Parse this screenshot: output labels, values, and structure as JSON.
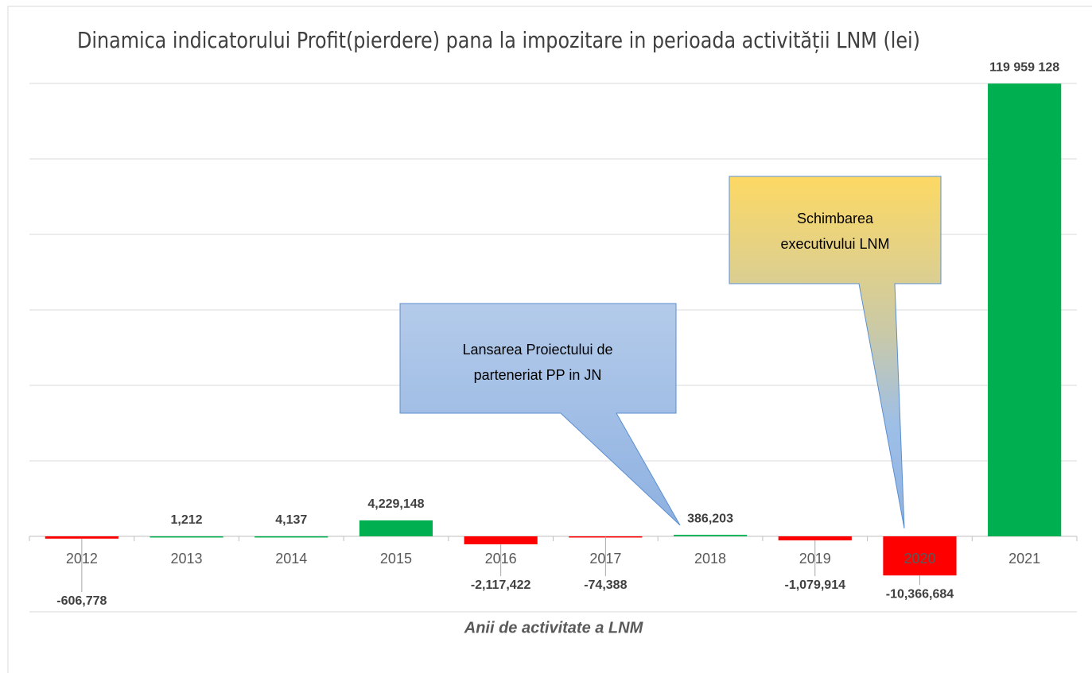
{
  "chart_data": {
    "type": "bar",
    "title": "Dinamica indicatorului Profit(pierdere) pana la impozitare in perioada activității LNM  (lei)",
    "x_label": "Anii de activitate a LNM",
    "categories": [
      "2012",
      "2013",
      "2014",
      "2015",
      "2016",
      "2017",
      "2018",
      "2019",
      "2020",
      "2021"
    ],
    "values": [
      -606778,
      1212,
      4137,
      4229148,
      -2117422,
      -74388,
      386203,
      -1079914,
      -10366684,
      119959128
    ],
    "value_labels": [
      "-606,778",
      "1,212",
      "4,137",
      "4,229,148",
      "-2,117,422",
      "-74,388",
      "386,203",
      "-1,079,914",
      "-10,366,684",
      "119 959 128"
    ],
    "colors": [
      "#ff0000",
      "#00b050",
      "#00b050",
      "#00b050",
      "#ff0000",
      "#ff0000",
      "#00b050",
      "#ff0000",
      "#ff0000",
      "#00b050"
    ],
    "ylim": [
      -20000000,
      120000000
    ],
    "yticks": [
      -20000000,
      0,
      20000000,
      40000000,
      60000000,
      80000000,
      100000000,
      120000000
    ],
    "grid": true,
    "annotations": [
      {
        "lines": [
          "Lansarea Proiectului de",
          "parteneriat PP in JN"
        ]
      },
      {
        "lines": [
          "Schimbarea",
          "executivului LNM"
        ]
      }
    ]
  }
}
